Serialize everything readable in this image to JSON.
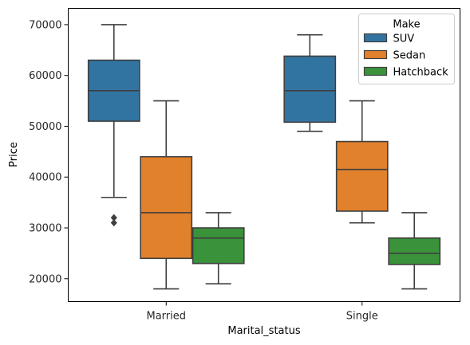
{
  "chart_data": {
    "type": "box",
    "title": "",
    "xlabel": "Marital_status",
    "ylabel": "Price",
    "categories": [
      "Married",
      "Single"
    ],
    "ylim": [
      15500,
      73200
    ],
    "yticks": [
      20000,
      30000,
      40000,
      50000,
      60000,
      70000
    ],
    "ytick_labels": [
      "20000",
      "30000",
      "40000",
      "50000",
      "60000",
      "70000"
    ],
    "grid": false,
    "legend": {
      "title": "Make",
      "placement": "top-right"
    },
    "series": [
      {
        "name": "SUV",
        "color": "#3274a1",
        "boxes": [
          {
            "whisker_low": 36000,
            "q1": 51000,
            "median": 57000,
            "q3": 63000,
            "whisker_high": 70000,
            "outliers": [
              31000,
              32000
            ]
          },
          {
            "whisker_low": 49000,
            "q1": 50800,
            "median": 57000,
            "q3": 63800,
            "whisker_high": 68000,
            "outliers": []
          }
        ]
      },
      {
        "name": "Sedan",
        "color": "#e1812c",
        "boxes": [
          {
            "whisker_low": 18000,
            "q1": 24000,
            "median": 33000,
            "q3": 44000,
            "whisker_high": 55000,
            "outliers": []
          },
          {
            "whisker_low": 31000,
            "q1": 33300,
            "median": 41500,
            "q3": 47000,
            "whisker_high": 55000,
            "outliers": []
          }
        ]
      },
      {
        "name": "Hatchback",
        "color": "#3a923a",
        "boxes": [
          {
            "whisker_low": 19000,
            "q1": 23000,
            "median": 28000,
            "q3": 30000,
            "whisker_high": 33000,
            "outliers": []
          },
          {
            "whisker_low": 18000,
            "q1": 22800,
            "median": 25000,
            "q3": 28000,
            "whisker_high": 33000,
            "outliers": []
          }
        ]
      }
    ]
  }
}
